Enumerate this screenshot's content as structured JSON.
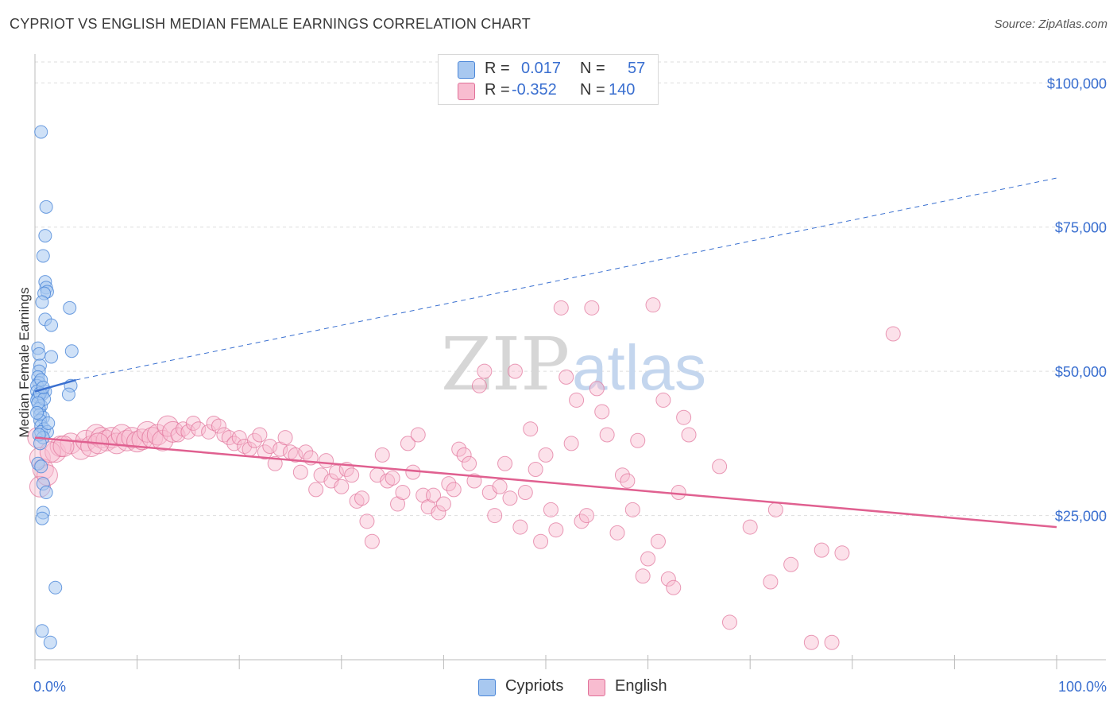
{
  "header": {
    "title": "CYPRIOT VS ENGLISH MEDIAN FEMALE EARNINGS CORRELATION CHART",
    "source": "Source: ZipAtlas.com"
  },
  "watermark": {
    "zip": "ZIP",
    "atlas": "atlas"
  },
  "legend": {
    "rows": [
      {
        "r_label": "R =",
        "r_value": "0.017",
        "n_label": "N =",
        "n_value": "57",
        "color": "#a8c8f0"
      },
      {
        "r_label": "R =",
        "r_value": "-0.352",
        "n_label": "N =",
        "n_value": "140",
        "color": "#f8bcd0"
      }
    ]
  },
  "bottom_legend": {
    "cypriots": "Cypriots",
    "english": "English"
  },
  "colors": {
    "blue_fill": "#a8c8f0",
    "blue_stroke": "#4a86d8",
    "blue_line": "#3a70d0",
    "pink_fill": "#f8bcd0",
    "pink_stroke": "#e07098",
    "pink_line": "#e06090",
    "axis_text": "#3a6fd0",
    "grid": "#dddddd"
  },
  "chart_data": {
    "type": "scatter",
    "title": "CYPRIOT VS ENGLISH MEDIAN FEMALE EARNINGS CORRELATION CHART",
    "xlabel": "",
    "ylabel": "Median Female Earnings",
    "xlim": [
      0,
      100
    ],
    "ylim": [
      0,
      105000
    ],
    "x_tick_labels": [
      "0.0%",
      "100.0%"
    ],
    "y_ticks": [
      25000,
      50000,
      75000,
      100000
    ],
    "y_tick_labels": [
      "$25,000",
      "$50,000",
      "$75,000",
      "$100,000"
    ],
    "grid": "horizontal dashed",
    "series": [
      {
        "name": "Cypriots",
        "r": 0.017,
        "n": 57,
        "trend": {
          "solid": [
            [
              0,
              46500
            ],
            [
              4,
              48500
            ]
          ],
          "dashed": [
            [
              4,
              48500
            ],
            [
              100,
              83500
            ]
          ]
        },
        "points": [
          [
            0.6,
            91500
          ],
          [
            1.1,
            78500
          ],
          [
            1.0,
            73500
          ],
          [
            0.8,
            70000
          ],
          [
            1.0,
            65500
          ],
          [
            1.1,
            64500
          ],
          [
            1.2,
            63800
          ],
          [
            0.9,
            63500
          ],
          [
            0.7,
            62000
          ],
          [
            3.4,
            61000
          ],
          [
            1.0,
            59000
          ],
          [
            1.6,
            58000
          ],
          [
            0.3,
            54000
          ],
          [
            0.4,
            53000
          ],
          [
            3.6,
            53500
          ],
          [
            1.6,
            52500
          ],
          [
            0.5,
            51000
          ],
          [
            0.4,
            50000
          ],
          [
            0.3,
            49000
          ],
          [
            0.4,
            48000
          ],
          [
            0.2,
            47500
          ],
          [
            3.5,
            47500
          ],
          [
            0.2,
            46500
          ],
          [
            1.0,
            46500
          ],
          [
            0.7,
            46000
          ],
          [
            0.4,
            45800
          ],
          [
            0.3,
            45500
          ],
          [
            0.2,
            45000
          ],
          [
            3.3,
            46000
          ],
          [
            0.6,
            44000
          ],
          [
            0.4,
            43500
          ],
          [
            0.5,
            42500
          ],
          [
            0.8,
            42000
          ],
          [
            0.5,
            41500
          ],
          [
            0.6,
            40500
          ],
          [
            0.9,
            40000
          ],
          [
            0.6,
            39500
          ],
          [
            1.2,
            39500
          ],
          [
            0.8,
            38500
          ],
          [
            0.3,
            34000
          ],
          [
            0.6,
            33500
          ],
          [
            0.8,
            30500
          ],
          [
            1.1,
            29000
          ],
          [
            0.8,
            25500
          ],
          [
            0.7,
            24500
          ],
          [
            2.0,
            12500
          ],
          [
            0.7,
            5000
          ],
          [
            1.5,
            3000
          ],
          [
            0.5,
            46200
          ],
          [
            0.9,
            45200
          ],
          [
            0.3,
            44500
          ],
          [
            0.6,
            48500
          ],
          [
            0.8,
            47200
          ],
          [
            0.2,
            42800
          ],
          [
            1.3,
            41000
          ],
          [
            0.4,
            39000
          ],
          [
            0.5,
            37500
          ]
        ]
      },
      {
        "name": "English",
        "r": -0.352,
        "n": 140,
        "trend": {
          "solid": [
            [
              0,
              38500
            ],
            [
              100,
              23000
            ]
          ]
        },
        "points": [
          [
            0.3,
            38500
          ],
          [
            0.5,
            35000
          ],
          [
            0.8,
            33000
          ],
          [
            0.5,
            30000
          ],
          [
            1.2,
            32000
          ],
          [
            2.0,
            36000
          ],
          [
            2.5,
            37000
          ],
          [
            3.5,
            37500
          ],
          [
            4.5,
            36500
          ],
          [
            5.0,
            38000
          ],
          [
            5.5,
            37000
          ],
          [
            6.0,
            39000
          ],
          [
            6.5,
            38500
          ],
          [
            7.0,
            38000
          ],
          [
            7.5,
            38500
          ],
          [
            8.0,
            37500
          ],
          [
            8.5,
            39000
          ],
          [
            9.0,
            38000
          ],
          [
            9.5,
            38500
          ],
          [
            10.0,
            37800
          ],
          [
            10.5,
            38200
          ],
          [
            11.0,
            39500
          ],
          [
            11.5,
            38500
          ],
          [
            12.0,
            39000
          ],
          [
            12.5,
            38000
          ],
          [
            13.0,
            40500
          ],
          [
            13.5,
            39500
          ],
          [
            14.0,
            39000
          ],
          [
            14.5,
            40000
          ],
          [
            15.0,
            39500
          ],
          [
            15.5,
            41000
          ],
          [
            16.0,
            40000
          ],
          [
            17.0,
            39500
          ],
          [
            17.5,
            41000
          ],
          [
            18.0,
            40500
          ],
          [
            18.5,
            39000
          ],
          [
            19.0,
            38500
          ],
          [
            19.5,
            37500
          ],
          [
            20.0,
            38500
          ],
          [
            20.5,
            37000
          ],
          [
            21.0,
            36500
          ],
          [
            21.5,
            38000
          ],
          [
            22.0,
            39000
          ],
          [
            22.5,
            36000
          ],
          [
            23.0,
            37000
          ],
          [
            23.5,
            34000
          ],
          [
            24.0,
            36500
          ],
          [
            24.5,
            38500
          ],
          [
            25.0,
            36000
          ],
          [
            25.5,
            35500
          ],
          [
            26.0,
            32500
          ],
          [
            26.5,
            36000
          ],
          [
            27.0,
            35000
          ],
          [
            27.5,
            29500
          ],
          [
            28.0,
            32000
          ],
          [
            28.5,
            34500
          ],
          [
            29.0,
            31000
          ],
          [
            29.5,
            32500
          ],
          [
            30.0,
            30000
          ],
          [
            30.5,
            33000
          ],
          [
            31.0,
            32000
          ],
          [
            31.5,
            27500
          ],
          [
            32.0,
            28000
          ],
          [
            32.5,
            24000
          ],
          [
            33.0,
            20500
          ],
          [
            33.5,
            32000
          ],
          [
            34.0,
            35500
          ],
          [
            34.5,
            31000
          ],
          [
            35.0,
            31500
          ],
          [
            35.5,
            27000
          ],
          [
            36.0,
            29000
          ],
          [
            36.5,
            37500
          ],
          [
            37.0,
            32500
          ],
          [
            37.5,
            39000
          ],
          [
            38.0,
            28500
          ],
          [
            38.5,
            26500
          ],
          [
            39.0,
            28500
          ],
          [
            39.5,
            25500
          ],
          [
            40.0,
            27000
          ],
          [
            40.5,
            30500
          ],
          [
            41.0,
            29500
          ],
          [
            41.5,
            36500
          ],
          [
            42.0,
            35500
          ],
          [
            42.5,
            34000
          ],
          [
            43.0,
            31000
          ],
          [
            43.5,
            47500
          ],
          [
            44.0,
            50000
          ],
          [
            44.5,
            29000
          ],
          [
            45.0,
            25000
          ],
          [
            45.5,
            30000
          ],
          [
            46.0,
            34000
          ],
          [
            46.5,
            28000
          ],
          [
            47.0,
            50000
          ],
          [
            47.5,
            23000
          ],
          [
            48.0,
            29000
          ],
          [
            48.5,
            40000
          ],
          [
            49.0,
            33000
          ],
          [
            49.5,
            20500
          ],
          [
            50.0,
            35500
          ],
          [
            50.5,
            26000
          ],
          [
            51.0,
            22500
          ],
          [
            51.5,
            61000
          ],
          [
            52.0,
            49000
          ],
          [
            52.5,
            37500
          ],
          [
            53.0,
            45000
          ],
          [
            53.5,
            24000
          ],
          [
            54.0,
            25000
          ],
          [
            54.5,
            61000
          ],
          [
            55.0,
            47000
          ],
          [
            55.5,
            43000
          ],
          [
            56.0,
            39000
          ],
          [
            57.0,
            22000
          ],
          [
            57.5,
            32000
          ],
          [
            58.0,
            31000
          ],
          [
            58.5,
            26000
          ],
          [
            59.0,
            38000
          ],
          [
            59.5,
            14500
          ],
          [
            60.0,
            17500
          ],
          [
            60.5,
            61500
          ],
          [
            61.0,
            20500
          ],
          [
            61.5,
            45000
          ],
          [
            62.0,
            14000
          ],
          [
            62.5,
            12500
          ],
          [
            63.0,
            29000
          ],
          [
            63.5,
            42000
          ],
          [
            64.0,
            39000
          ],
          [
            67.0,
            33500
          ],
          [
            68.0,
            6500
          ],
          [
            70.0,
            23000
          ],
          [
            72.0,
            13500
          ],
          [
            72.5,
            26000
          ],
          [
            74.0,
            16500
          ],
          [
            76.0,
            3000
          ],
          [
            77.0,
            19000
          ],
          [
            78.0,
            3000
          ],
          [
            79.0,
            18500
          ],
          [
            84.0,
            56500
          ],
          [
            1.5,
            36000
          ],
          [
            2.8,
            37000
          ],
          [
            6.2,
            37500
          ]
        ]
      }
    ]
  }
}
